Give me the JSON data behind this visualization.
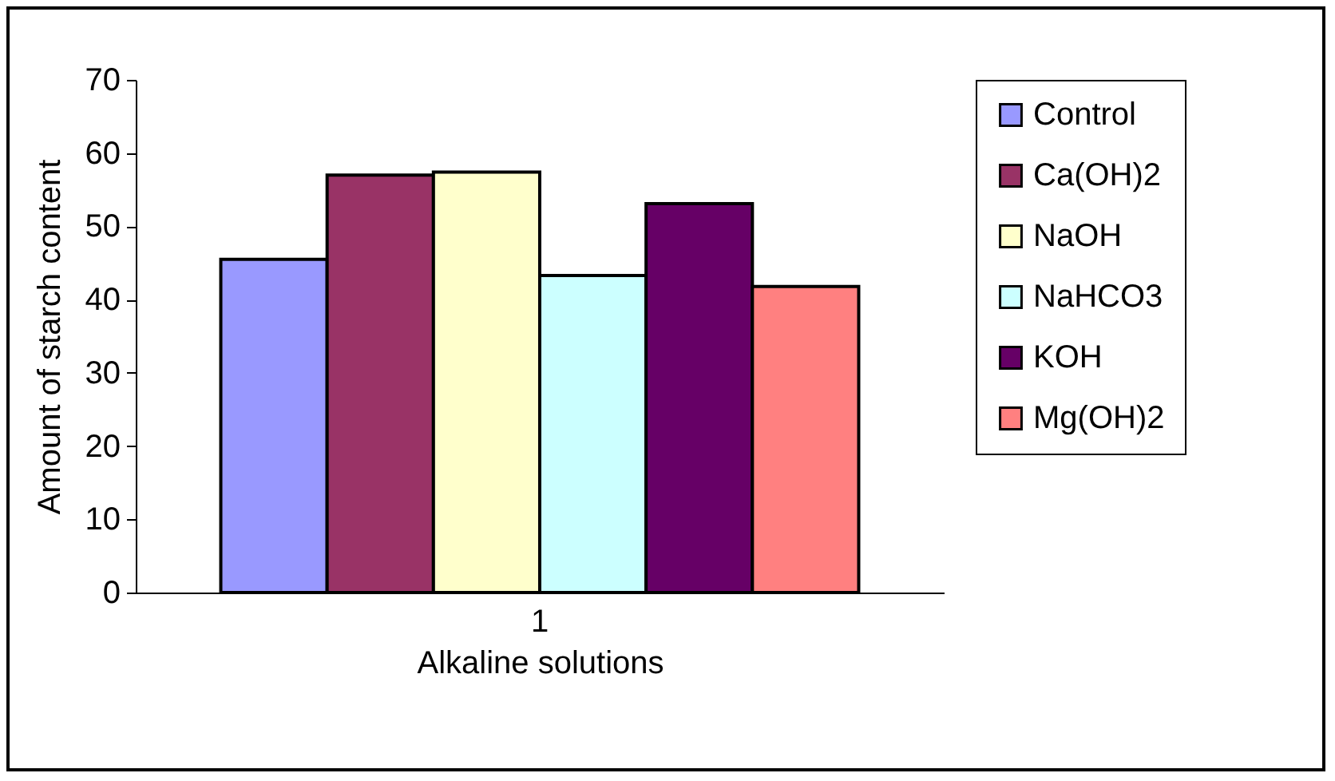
{
  "chart_data": {
    "type": "bar",
    "xlabel": "Alkaline solutions",
    "ylabel": "Amount of starch content",
    "categories": [
      "1"
    ],
    "series": [
      {
        "name": "Control",
        "color": "#9999ff",
        "values": [
          45.5
        ]
      },
      {
        "name": "Ca(OH)2",
        "color": "#993366",
        "values": [
          57.0
        ]
      },
      {
        "name": "NaOH",
        "color": "#ffffcc",
        "values": [
          57.4
        ]
      },
      {
        "name": "NaHCO3",
        "color": "#ccffff",
        "values": [
          43.3
        ]
      },
      {
        "name": "KOH",
        "color": "#660066",
        "values": [
          53.1
        ]
      },
      {
        "name": "Mg(OH)2",
        "color": "#ff8080",
        "values": [
          41.8
        ]
      }
    ],
    "ylim": [
      0,
      70
    ],
    "yticks": [
      0,
      10,
      20,
      30,
      40,
      50,
      60,
      70
    ],
    "grid": false,
    "legend": "right"
  }
}
